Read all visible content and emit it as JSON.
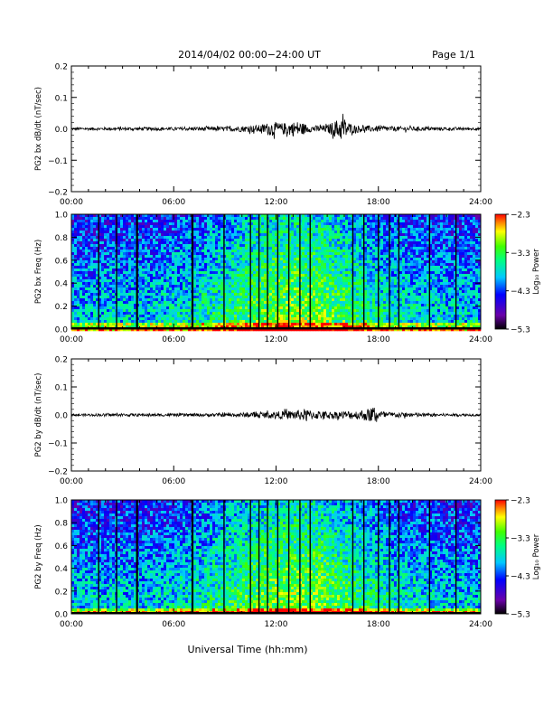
{
  "header": {
    "title": "2014/04/02  00:00−24:00 UT",
    "page": "Page 1/1"
  },
  "xlabel": "Universal Time (hh:mm)",
  "x_ticks": [
    "00:00",
    "06:00",
    "12:00",
    "18:00",
    "24:00"
  ],
  "colorbar_label": "Log₁₀ Power",
  "chart_data": [
    {
      "type": "line",
      "ylabel": "PG2 bx dB/dt (nT/sec)",
      "ylim": [
        -0.2,
        0.2
      ],
      "y_ticks": [
        "0.2",
        "0.1",
        "0.0",
        "−0.1",
        "−0.2"
      ],
      "xlim": [
        "00:00",
        "24:00"
      ],
      "envelope": [
        {
          "t": 0,
          "amp": 0.004
        },
        {
          "t": 3,
          "amp": 0.005
        },
        {
          "t": 6,
          "amp": 0.005
        },
        {
          "t": 9,
          "amp": 0.007
        },
        {
          "t": 11,
          "amp": 0.012
        },
        {
          "t": 11.7,
          "amp": 0.022
        },
        {
          "t": 12.3,
          "amp": 0.018
        },
        {
          "t": 13.3,
          "amp": 0.025
        },
        {
          "t": 14,
          "amp": 0.01
        },
        {
          "t": 15,
          "amp": 0.012
        },
        {
          "t": 15.9,
          "amp": 0.04
        },
        {
          "t": 16.5,
          "amp": 0.012
        },
        {
          "t": 18,
          "amp": 0.009
        },
        {
          "t": 21,
          "amp": 0.006
        },
        {
          "t": 24,
          "amp": 0.004
        }
      ]
    },
    {
      "type": "heatmap",
      "ylabel": "PG2 bx Freq (Hz)",
      "ylim": [
        0.0,
        1.0
      ],
      "y_ticks": [
        "1.0",
        "0.8",
        "0.6",
        "0.4",
        "0.2",
        "0.0"
      ],
      "xlim": [
        "00:00",
        "24:00"
      ],
      "colorbar": {
        "min": -5.3,
        "max": -2.3,
        "ticks": [
          "−2.3",
          "−3.3",
          "−4.3",
          "−5.3"
        ]
      },
      "gaps_hours": [
        1.6,
        2.65,
        3.85,
        7.1,
        8.95,
        10.5,
        11.0,
        11.5,
        12.1,
        12.75,
        13.4,
        14.0,
        16.5,
        17.15,
        18.0,
        18.65,
        19.2,
        21.0,
        22.55
      ]
    },
    {
      "type": "line",
      "ylabel": "PG2 by dB/dt (nT/sec)",
      "ylim": [
        -0.2,
        0.2
      ],
      "y_ticks": [
        "0.2",
        "0.1",
        "0.0",
        "−0.1",
        "−0.2"
      ],
      "xlim": [
        "00:00",
        "24:00"
      ],
      "envelope": [
        {
          "t": 0,
          "amp": 0.004
        },
        {
          "t": 3,
          "amp": 0.005
        },
        {
          "t": 6,
          "amp": 0.005
        },
        {
          "t": 9,
          "amp": 0.006
        },
        {
          "t": 11,
          "amp": 0.01
        },
        {
          "t": 12,
          "amp": 0.012
        },
        {
          "t": 13.7,
          "amp": 0.02
        },
        {
          "t": 15,
          "amp": 0.012
        },
        {
          "t": 16.8,
          "amp": 0.016
        },
        {
          "t": 17.6,
          "amp": 0.025
        },
        {
          "t": 18.5,
          "amp": 0.01
        },
        {
          "t": 21,
          "amp": 0.006
        },
        {
          "t": 24,
          "amp": 0.004
        }
      ]
    },
    {
      "type": "heatmap",
      "ylabel": "PG2 by Freq (Hz)",
      "ylim": [
        0.0,
        1.0
      ],
      "y_ticks": [
        "1.0",
        "0.8",
        "0.6",
        "0.4",
        "0.2",
        "0.0"
      ],
      "xlim": [
        "00:00",
        "24:00"
      ],
      "colorbar": {
        "min": -5.3,
        "max": -2.3,
        "ticks": [
          "−2.3",
          "−3.3",
          "−4.3",
          "−5.3"
        ]
      },
      "gaps_hours": [
        1.6,
        2.65,
        3.85,
        7.1,
        8.95,
        10.5,
        11.0,
        11.5,
        12.1,
        12.75,
        13.4,
        14.0,
        16.5,
        17.15,
        18.0,
        18.65,
        19.2,
        21.0,
        22.55
      ]
    }
  ]
}
